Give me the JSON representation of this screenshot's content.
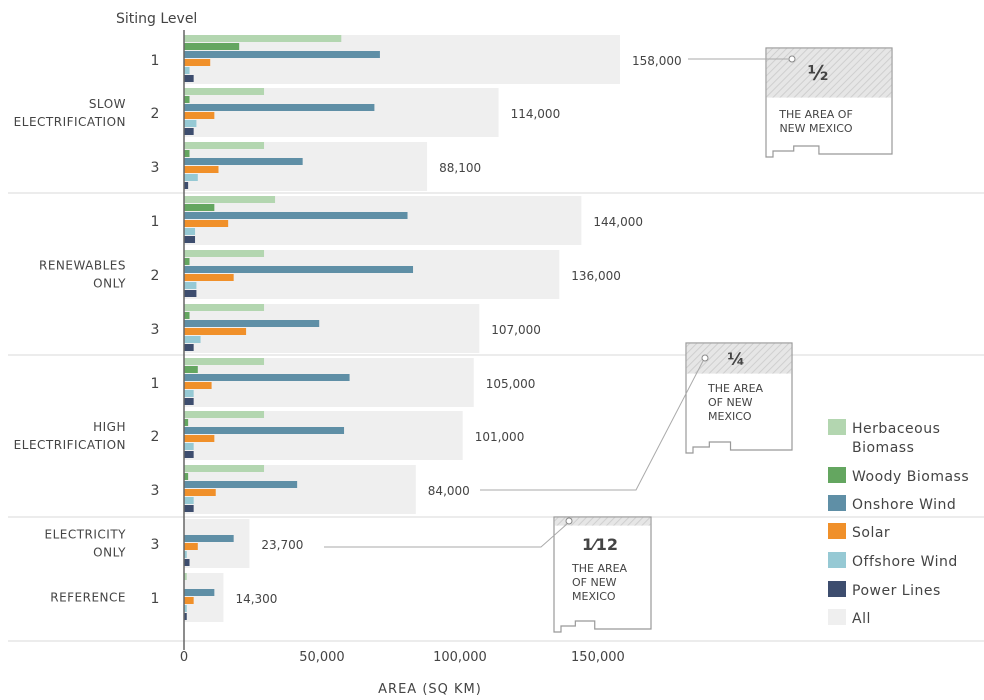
{
  "chart_data": {
    "type": "bar",
    "orientation": "horizontal",
    "title": "",
    "ylabel": "Siting Level",
    "xlabel": "AREA (SQ KM)",
    "xlim": [
      0,
      160000
    ],
    "xticks": [
      0,
      50000,
      100000,
      150000
    ],
    "xtick_labels": [
      "0",
      "50,000",
      "100,000",
      "150,000"
    ],
    "grid": false,
    "legend_position": "right",
    "colors": {
      "herbaceous": "#b3d6b0",
      "woody": "#64a660",
      "onshore": "#5f8fa6",
      "solar": "#f0902a",
      "offshore": "#96c9d4",
      "lines": "#3d4d6e",
      "all": "#efefef"
    },
    "legend": [
      {
        "key": "herbaceous",
        "label": "Herbaceous Biomass"
      },
      {
        "key": "woody",
        "label": "Woody Biomass"
      },
      {
        "key": "onshore",
        "label": "Onshore Wind"
      },
      {
        "key": "solar",
        "label": "Solar"
      },
      {
        "key": "offshore",
        "label": "Offshore Wind"
      },
      {
        "key": "lines",
        "label": "Power Lines"
      },
      {
        "key": "all",
        "label": "All"
      }
    ],
    "groups": [
      {
        "label": "SLOW ELECTRIFICATION",
        "rows": [
          {
            "level": "1",
            "total": 158000,
            "total_label": "158,000",
            "values": {
              "herbaceous": 57000,
              "woody": 20000,
              "onshore": 71000,
              "solar": 9500,
              "offshore": 2000,
              "lines": 3500
            }
          },
          {
            "level": "2",
            "total": 114000,
            "total_label": "114,000",
            "values": {
              "herbaceous": 29000,
              "woody": 2000,
              "onshore": 69000,
              "solar": 11000,
              "offshore": 4500,
              "lines": 3500
            }
          },
          {
            "level": "3",
            "total": 88100,
            "total_label": "88,100",
            "values": {
              "herbaceous": 29000,
              "woody": 2000,
              "onshore": 43000,
              "solar": 12500,
              "offshore": 5000,
              "lines": 1500
            }
          }
        ]
      },
      {
        "label": "RENEWABLES ONLY",
        "rows": [
          {
            "level": "1",
            "total": 144000,
            "total_label": "144,000",
            "values": {
              "herbaceous": 33000,
              "woody": 11000,
              "onshore": 81000,
              "solar": 16000,
              "offshore": 4000,
              "lines": 4000
            }
          },
          {
            "level": "2",
            "total": 136000,
            "total_label": "136,000",
            "values": {
              "herbaceous": 29000,
              "woody": 2000,
              "onshore": 83000,
              "solar": 18000,
              "offshore": 4500,
              "lines": 4500
            }
          },
          {
            "level": "3",
            "total": 107000,
            "total_label": "107,000",
            "values": {
              "herbaceous": 29000,
              "woody": 2000,
              "onshore": 49000,
              "solar": 22500,
              "offshore": 6000,
              "lines": 3500
            }
          }
        ]
      },
      {
        "label": "HIGH ELECTRIFICATION",
        "rows": [
          {
            "level": "1",
            "total": 105000,
            "total_label": "105,000",
            "values": {
              "herbaceous": 29000,
              "woody": 5000,
              "onshore": 60000,
              "solar": 10000,
              "offshore": 3500,
              "lines": 3500
            }
          },
          {
            "level": "2",
            "total": 101000,
            "total_label": "101,000",
            "values": {
              "herbaceous": 29000,
              "woody": 1500,
              "onshore": 58000,
              "solar": 11000,
              "offshore": 3500,
              "lines": 3500
            }
          },
          {
            "level": "3",
            "total": 84000,
            "total_label": "84,000",
            "values": {
              "herbaceous": 29000,
              "woody": 1500,
              "onshore": 41000,
              "solar": 11500,
              "offshore": 3500,
              "lines": 3500
            }
          }
        ]
      },
      {
        "label": "ELECTRICITY ONLY",
        "rows": [
          {
            "level": "3",
            "total": 23700,
            "total_label": "23,700",
            "values": {
              "herbaceous": 0,
              "woody": 0,
              "onshore": 18000,
              "solar": 5000,
              "offshore": 1000,
              "lines": 2000
            }
          }
        ]
      },
      {
        "label": "REFERENCE",
        "rows": [
          {
            "level": "1",
            "total": 14300,
            "total_label": "14,300",
            "values": {
              "herbaceous": 1000,
              "woody": 0,
              "onshore": 11000,
              "solar": 3500,
              "offshore": 1000,
              "lines": 1000
            }
          }
        ]
      }
    ],
    "annotations": [
      {
        "fraction": "½",
        "text": "THE AREA OF NEW MEXICO"
      },
      {
        "fraction": "¼",
        "text": "THE AREA OF NEW MEXICO"
      },
      {
        "fraction": "1⁄12",
        "text": "THE AREA OF NEW MEXICO"
      }
    ]
  }
}
